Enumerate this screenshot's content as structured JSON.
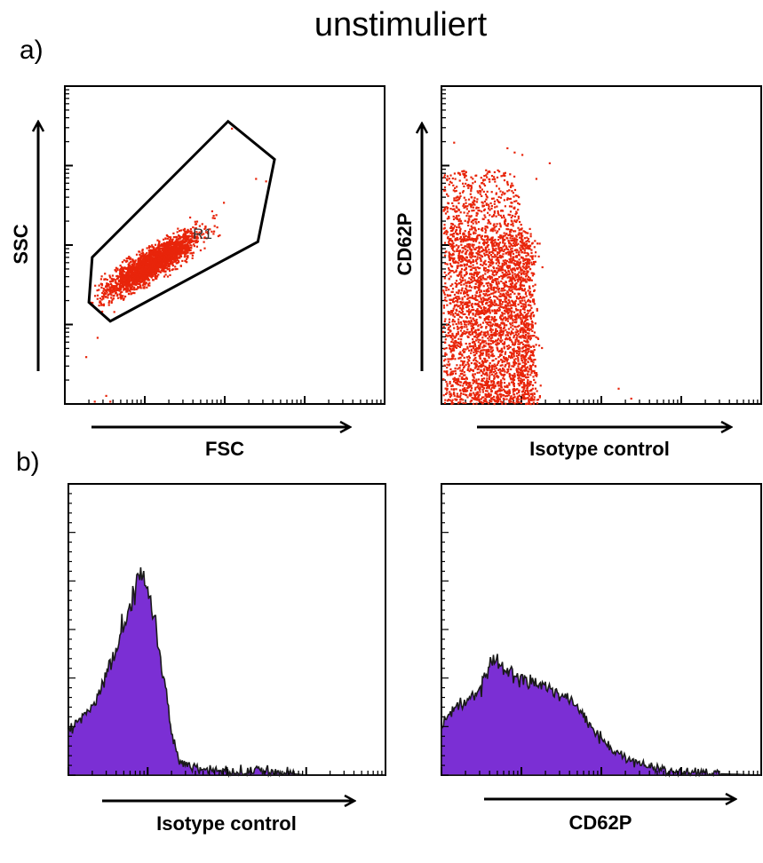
{
  "title": "unstimuliert",
  "panels": {
    "a_label": "a)",
    "b_label": "b)"
  },
  "colors": {
    "dots": "#e8250a",
    "histogram_fill": "#7b2fd4",
    "histogram_edge": "#1a1a1a",
    "frame": "#000000"
  },
  "chart_data": [
    {
      "type": "scatter",
      "panel": "a)",
      "xlabel": "FSC",
      "ylabel": "SSC",
      "xscale": "log",
      "yscale": "log",
      "xlim": [
        1,
        10000
      ],
      "ylim": [
        1,
        10000
      ],
      "gate": {
        "name": "R1",
        "vertices": [
          [
            2.2,
            70
          ],
          [
            110,
            3600
          ],
          [
            420,
            1200
          ],
          [
            260,
            110
          ],
          [
            3.7,
            11
          ],
          [
            2.0,
            19
          ]
        ]
      },
      "clusters": [
        {
          "center": [
            12,
            60
          ],
          "spread": [
            0.28,
            0.16
          ],
          "n": 2600
        }
      ],
      "points": [
        [
          2.3,
          1.1
        ],
        [
          3.2,
          1.3
        ],
        [
          3.6,
          1.1
        ],
        [
          1.8,
          4
        ],
        [
          2.5,
          7
        ],
        [
          120,
          3000
        ],
        [
          240,
          700
        ],
        [
          320,
          650
        ],
        [
          95,
          350
        ]
      ]
    },
    {
      "type": "scatter",
      "panel": "a)",
      "xlabel": "Isotype control",
      "ylabel": "CD62P",
      "xscale": "log",
      "yscale": "log",
      "xlim": [
        1,
        10000
      ],
      "ylim": [
        1,
        10000
      ],
      "clusters": [
        {
          "region_x": [
            1,
            14
          ],
          "region_y": [
            1,
            120
          ],
          "n": 3200
        },
        {
          "region_x": [
            1,
            12
          ],
          "region_y": [
            120,
            900
          ],
          "n": 600
        }
      ],
      "points": [
        [
          1.4,
          2000
        ],
        [
          6.5,
          1700
        ],
        [
          8,
          1500
        ],
        [
          15,
          700
        ],
        [
          22,
          1100
        ],
        [
          160,
          1.6
        ],
        [
          230,
          1.2
        ],
        [
          10,
          1400
        ]
      ]
    },
    {
      "type": "area",
      "panel": "b)",
      "xlabel": "Isotype control",
      "xscale": "log",
      "xlim": [
        1,
        10000
      ],
      "ylim": [
        0,
        120
      ],
      "x": [
        1,
        1.5,
        2,
        3,
        4,
        5,
        6,
        7,
        8,
        9,
        10,
        12,
        14,
        17,
        20,
        25,
        30,
        40,
        50,
        70,
        100,
        150,
        200,
        300,
        500,
        1000,
        10000
      ],
      "y": [
        18,
        24,
        28,
        40,
        50,
        62,
        70,
        75,
        79,
        80,
        76,
        65,
        52,
        34,
        18,
        6,
        4,
        3,
        2,
        2,
        1,
        1,
        2,
        1,
        1,
        0,
        0
      ]
    },
    {
      "type": "area",
      "panel": "b)",
      "xlabel": "CD62P",
      "xscale": "log",
      "xlim": [
        1,
        10000
      ],
      "ylim": [
        0,
        120
      ],
      "x": [
        1,
        1.5,
        2,
        3,
        4,
        5,
        6,
        8,
        10,
        15,
        20,
        30,
        50,
        70,
        100,
        150,
        200,
        300,
        400,
        600,
        1000,
        10000
      ],
      "y": [
        20,
        28,
        30,
        35,
        45,
        48,
        44,
        42,
        40,
        38,
        36,
        34,
        28,
        21,
        15,
        10,
        7,
        5,
        3,
        2,
        1,
        0
      ]
    }
  ]
}
